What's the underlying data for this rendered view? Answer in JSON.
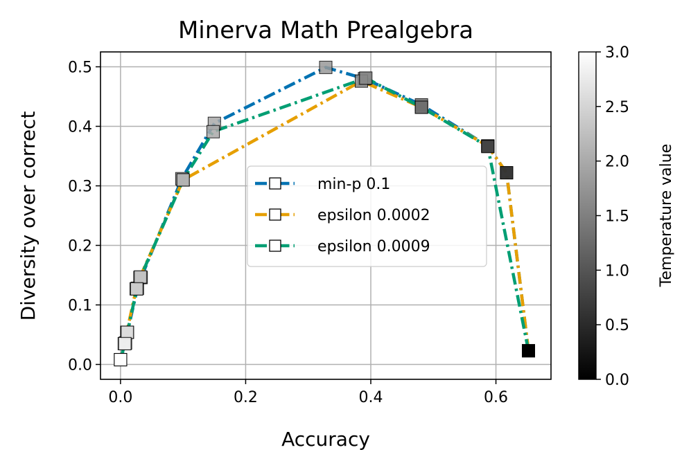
{
  "chart_data": {
    "type": "line",
    "title": "Minerva Math Prealgebra",
    "xlabel": "Accuracy",
    "ylabel": "Diversity over correct",
    "xlim": [
      -0.032,
      0.688
    ],
    "ylim": [
      -0.025,
      0.525
    ],
    "xticks": [
      0.0,
      0.2,
      0.4,
      0.6
    ],
    "xtick_labels": [
      "0.0",
      "0.2",
      "0.4",
      "0.6"
    ],
    "yticks": [
      0.0,
      0.1,
      0.2,
      0.3,
      0.4,
      0.5
    ],
    "ytick_labels": [
      "0.0",
      "0.1",
      "0.2",
      "0.3",
      "0.4",
      "0.5"
    ],
    "grid": true,
    "legend_position": "center-right",
    "colorbar": {
      "label": "Temperature value",
      "range": [
        0.0,
        3.0
      ],
      "ticks": [
        0.0,
        0.5,
        1.0,
        1.5,
        2.0,
        2.5,
        3.0
      ],
      "tick_labels": [
        "0.0",
        "0.5",
        "1.0",
        "1.5",
        "2.0",
        "2.5",
        "3.0"
      ],
      "colormap": "gray"
    },
    "series": [
      {
        "name": "min-p 0.1",
        "color": "#0072b2",
        "x": [
          0.652,
          0.617,
          0.587,
          0.481,
          0.39,
          0.328,
          0.15,
          0.098,
          0.033,
          0.027,
          0.011,
          0.008,
          0.0
        ],
        "y": [
          0.023,
          0.322,
          0.367,
          0.436,
          0.48,
          0.499,
          0.405,
          0.312,
          0.146,
          0.128,
          0.054,
          0.036,
          0.008
        ],
        "temperature": [
          0.0,
          0.6,
          0.8,
          1.3,
          1.6,
          1.8,
          2.0,
          2.1,
          2.3,
          2.4,
          2.6,
          2.8,
          3.0
        ]
      },
      {
        "name": "epsilon 0.0002",
        "color": "#e69f00",
        "x": [
          0.652,
          0.617,
          0.587,
          0.481,
          0.385,
          0.1,
          0.031,
          0.025,
          0.01,
          0.006,
          0.0
        ],
        "y": [
          0.023,
          0.322,
          0.367,
          0.432,
          0.476,
          0.31,
          0.146,
          0.127,
          0.054,
          0.035,
          0.008
        ],
        "temperature": [
          0.0,
          0.6,
          0.8,
          1.3,
          1.6,
          2.1,
          2.3,
          2.4,
          2.6,
          2.8,
          3.0
        ]
      },
      {
        "name": "epsilon 0.0009",
        "color": "#009e73",
        "x": [
          0.652,
          0.587,
          0.481,
          0.392,
          0.148,
          0.1,
          0.032,
          0.026,
          0.011,
          0.007,
          0.0
        ],
        "y": [
          0.023,
          0.366,
          0.432,
          0.481,
          0.391,
          0.31,
          0.147,
          0.127,
          0.054,
          0.035,
          0.008
        ],
        "temperature": [
          0.0,
          0.8,
          1.3,
          1.6,
          2.0,
          2.1,
          2.3,
          2.4,
          2.6,
          2.8,
          3.0
        ]
      }
    ]
  }
}
